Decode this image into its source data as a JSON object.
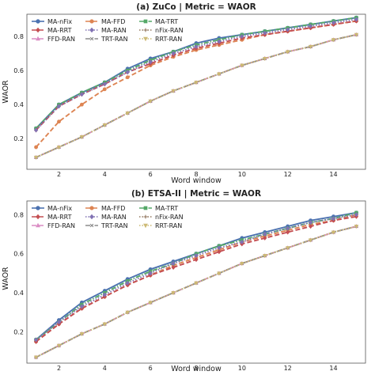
{
  "chart_data": [
    {
      "type": "line",
      "title": "(a) ZuCo | Metric = WAOR",
      "xlabel": "Word window",
      "ylabel": "WAOR",
      "xlim": [
        0.6,
        15.4
      ],
      "ylim": [
        0.02,
        0.93
      ],
      "xticks": [
        2,
        4,
        6,
        8,
        10,
        12,
        14
      ],
      "yticks": [
        0.2,
        0.4,
        0.6,
        0.8
      ],
      "grid": false,
      "legend_position": "upper-left",
      "x": [
        1,
        2,
        3,
        4,
        5,
        6,
        7,
        8,
        9,
        10,
        11,
        12,
        13,
        14,
        15
      ],
      "series": [
        {
          "name": "MA-nFix",
          "color": "#4c72b0",
          "marker": "circle",
          "dash": "solid",
          "values": [
            0.26,
            0.4,
            0.47,
            0.53,
            0.61,
            0.67,
            0.71,
            0.76,
            0.79,
            0.81,
            0.83,
            0.85,
            0.87,
            0.89,
            0.91
          ]
        },
        {
          "name": "MA-FFD",
          "color": "#dd8452",
          "marker": "octagon",
          "dash": "dashed",
          "values": [
            0.15,
            0.3,
            0.4,
            0.49,
            0.56,
            0.63,
            0.68,
            0.72,
            0.75,
            0.78,
            0.81,
            0.83,
            0.85,
            0.87,
            0.89
          ]
        },
        {
          "name": "MA-TRT",
          "color": "#55a868",
          "marker": "square",
          "dash": "dashdot",
          "values": [
            0.26,
            0.4,
            0.47,
            0.53,
            0.6,
            0.66,
            0.71,
            0.75,
            0.78,
            0.81,
            0.83,
            0.85,
            0.87,
            0.89,
            0.91
          ]
        },
        {
          "name": "MA-RRT",
          "color": "#c44e52",
          "marker": "diamond",
          "dash": "dashed",
          "values": [
            0.25,
            0.39,
            0.46,
            0.52,
            0.59,
            0.64,
            0.69,
            0.73,
            0.76,
            0.79,
            0.81,
            0.83,
            0.85,
            0.87,
            0.89
          ]
        },
        {
          "name": "MA-RAN",
          "color": "#8172b3",
          "marker": "diamond",
          "dash": "dotted",
          "values": [
            0.25,
            0.39,
            0.46,
            0.52,
            0.59,
            0.65,
            0.7,
            0.74,
            0.77,
            0.8,
            0.82,
            0.84,
            0.86,
            0.88,
            0.9
          ]
        },
        {
          "name": "nFix-RAN",
          "color": "#937860",
          "marker": "plus",
          "dash": "dotted",
          "values": [
            0.09,
            0.15,
            0.21,
            0.28,
            0.35,
            0.42,
            0.48,
            0.53,
            0.58,
            0.63,
            0.67,
            0.71,
            0.74,
            0.78,
            0.81
          ]
        },
        {
          "name": "FFD-RAN",
          "color": "#da8bc3",
          "marker": "triangle-up",
          "dash": "dashed",
          "values": [
            0.09,
            0.15,
            0.21,
            0.28,
            0.35,
            0.42,
            0.48,
            0.53,
            0.58,
            0.63,
            0.67,
            0.71,
            0.74,
            0.78,
            0.81
          ]
        },
        {
          "name": "TRT-RAN",
          "color": "#8c8c8c",
          "marker": "x",
          "dash": "dashdot",
          "values": [
            0.09,
            0.15,
            0.21,
            0.28,
            0.35,
            0.42,
            0.48,
            0.53,
            0.58,
            0.63,
            0.67,
            0.71,
            0.74,
            0.78,
            0.81
          ]
        },
        {
          "name": "RRT-RAN",
          "color": "#ccb974",
          "marker": "triangle-down",
          "dash": "dotted",
          "values": [
            0.09,
            0.15,
            0.21,
            0.28,
            0.35,
            0.42,
            0.48,
            0.53,
            0.58,
            0.63,
            0.67,
            0.71,
            0.74,
            0.78,
            0.81
          ]
        }
      ]
    },
    {
      "type": "line",
      "title": "(b) ETSA-II | Metric = WAOR",
      "xlabel": "Word window",
      "ylabel": "WAOR",
      "xlim": [
        0.6,
        15.4
      ],
      "ylim": [
        0.04,
        0.87
      ],
      "xticks": [
        2,
        4,
        6,
        8,
        10,
        12,
        14
      ],
      "yticks": [
        0.2,
        0.4,
        0.6,
        0.8
      ],
      "grid": false,
      "legend_position": "upper-left",
      "x": [
        1,
        2,
        3,
        4,
        5,
        6,
        7,
        8,
        9,
        10,
        11,
        12,
        13,
        14,
        15
      ],
      "series": [
        {
          "name": "MA-nFix",
          "color": "#4c72b0",
          "marker": "circle",
          "dash": "solid",
          "values": [
            0.16,
            0.26,
            0.35,
            0.41,
            0.47,
            0.52,
            0.56,
            0.6,
            0.64,
            0.68,
            0.71,
            0.74,
            0.77,
            0.79,
            0.81
          ]
        },
        {
          "name": "MA-FFD",
          "color": "#dd8452",
          "marker": "octagon",
          "dash": "dashed",
          "values": [
            0.15,
            0.24,
            0.32,
            0.38,
            0.44,
            0.49,
            0.54,
            0.58,
            0.62,
            0.66,
            0.69,
            0.72,
            0.75,
            0.77,
            0.8
          ]
        },
        {
          "name": "MA-TRT",
          "color": "#55a868",
          "marker": "square",
          "dash": "dashdot",
          "values": [
            0.16,
            0.25,
            0.34,
            0.4,
            0.46,
            0.51,
            0.55,
            0.6,
            0.64,
            0.67,
            0.7,
            0.73,
            0.76,
            0.78,
            0.81
          ]
        },
        {
          "name": "MA-RRT",
          "color": "#c44e52",
          "marker": "diamond",
          "dash": "dashed",
          "values": [
            0.15,
            0.24,
            0.32,
            0.38,
            0.44,
            0.49,
            0.53,
            0.57,
            0.61,
            0.65,
            0.68,
            0.71,
            0.74,
            0.77,
            0.79
          ]
        },
        {
          "name": "MA-RAN",
          "color": "#8172b3",
          "marker": "diamond",
          "dash": "dotted",
          "values": [
            0.16,
            0.25,
            0.33,
            0.39,
            0.45,
            0.5,
            0.55,
            0.59,
            0.63,
            0.66,
            0.7,
            0.73,
            0.76,
            0.78,
            0.8
          ]
        },
        {
          "name": "nFix-RAN",
          "color": "#937860",
          "marker": "plus",
          "dash": "dotted",
          "values": [
            0.07,
            0.13,
            0.19,
            0.24,
            0.3,
            0.35,
            0.4,
            0.45,
            0.5,
            0.55,
            0.59,
            0.63,
            0.67,
            0.71,
            0.74
          ]
        },
        {
          "name": "FFD-RAN",
          "color": "#da8bc3",
          "marker": "triangle-up",
          "dash": "dashed",
          "values": [
            0.07,
            0.13,
            0.19,
            0.24,
            0.3,
            0.35,
            0.4,
            0.45,
            0.5,
            0.55,
            0.59,
            0.63,
            0.67,
            0.71,
            0.74
          ]
        },
        {
          "name": "TRT-RAN",
          "color": "#8c8c8c",
          "marker": "x",
          "dash": "dashdot",
          "values": [
            0.07,
            0.13,
            0.19,
            0.24,
            0.3,
            0.35,
            0.4,
            0.45,
            0.5,
            0.55,
            0.59,
            0.63,
            0.67,
            0.71,
            0.74
          ]
        },
        {
          "name": "RRT-RAN",
          "color": "#ccb974",
          "marker": "triangle-down",
          "dash": "dotted",
          "values": [
            0.07,
            0.13,
            0.19,
            0.24,
            0.3,
            0.35,
            0.4,
            0.45,
            0.5,
            0.55,
            0.59,
            0.63,
            0.67,
            0.71,
            0.74
          ]
        }
      ]
    }
  ]
}
